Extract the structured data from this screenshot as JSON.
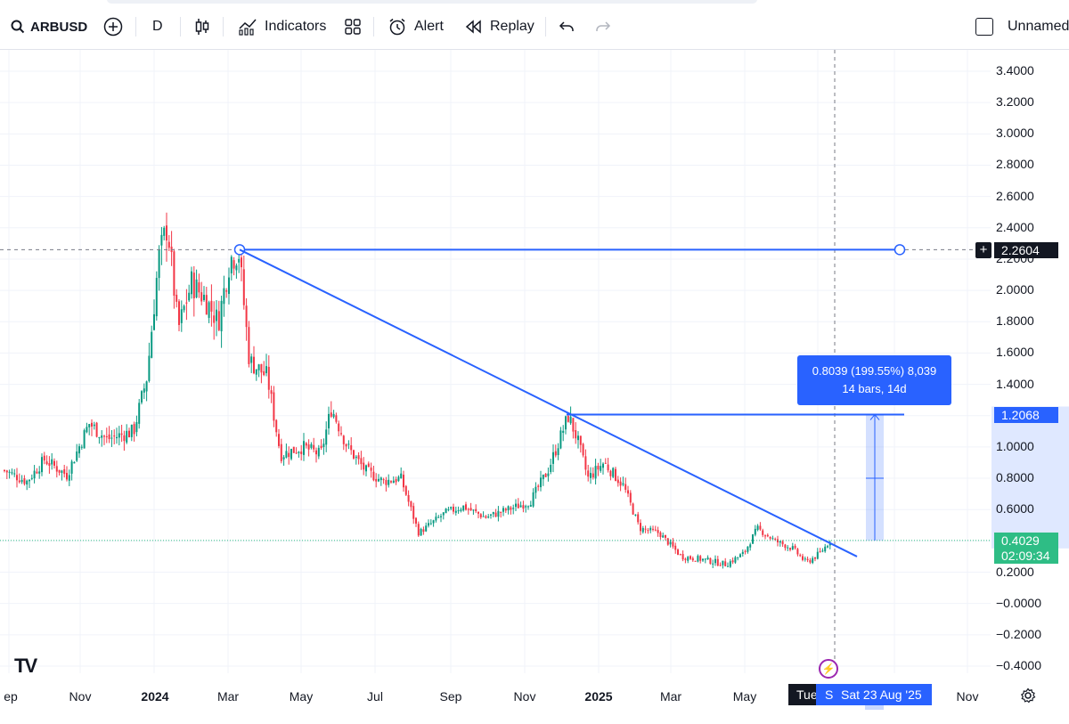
{
  "toolbar": {
    "symbol": "ARBUSD",
    "interval": "D",
    "indicators_label": "Indicators",
    "alert_label": "Alert",
    "replay_label": "Replay",
    "layout_name": "Unnamed"
  },
  "price_axis": {
    "ticks": [
      "3.4000",
      "3.2000",
      "3.0000",
      "2.8000",
      "2.6000",
      "2.4000",
      "2.2000",
      "2.0000",
      "1.8000",
      "1.6000",
      "1.4000",
      "1.2000",
      "1.0000",
      "0.8000",
      "0.6000",
      "0.4000",
      "0.2000",
      "−0.0000",
      "−0.2000",
      "−0.4000"
    ],
    "crosshair_price": "2.2604",
    "measure_target_price": "1.2068",
    "last_price": "0.4029",
    "countdown": "02:09:34"
  },
  "time_axis": {
    "ticks": [
      "ep",
      "Nov",
      "2024",
      "Mar",
      "May",
      "Jul",
      "Sep",
      "Nov",
      "2025",
      "Mar",
      "May",
      "Nov"
    ],
    "cursor_day": "Tue",
    "cursor_date_prefix": "S",
    "cursor_date": "Sat 23 Aug '25"
  },
  "measure": {
    "line1": "0.8039 (199.55%) 8,039",
    "line2": "14 bars, 14d"
  },
  "colors": {
    "up": "#089981",
    "down": "#f23645",
    "drawing": "#2962ff",
    "last_price_badge": "#2ebd85"
  },
  "chart_data": {
    "type": "candlestick",
    "symbol": "ARBUSD",
    "interval": "D",
    "ylim": [
      -0.4,
      3.4
    ],
    "series_close_approx": [
      {
        "x": "2023-10",
        "y": 0.85
      },
      {
        "x": "2023-12",
        "y": 1.15
      },
      {
        "x": "2024-01-12",
        "y": 2.4
      },
      {
        "x": "2024-02",
        "y": 1.85
      },
      {
        "x": "2024-03-10",
        "y": 2.25
      },
      {
        "x": "2024-04",
        "y": 1.1
      },
      {
        "x": "2024-06",
        "y": 1.2
      },
      {
        "x": "2024-08",
        "y": 0.5
      },
      {
        "x": "2024-10",
        "y": 0.6
      },
      {
        "x": "2024-12-05",
        "y": 1.2
      },
      {
        "x": "2025-02",
        "y": 0.5
      },
      {
        "x": "2025-04",
        "y": 0.3
      },
      {
        "x": "2025-05",
        "y": 0.45
      },
      {
        "x": "2025-08-23",
        "y": 0.4029
      }
    ],
    "drawings": [
      {
        "kind": "horizontal_line",
        "price": 2.2604
      },
      {
        "kind": "trend_line",
        "from_price": 2.2604,
        "to_price": 0.3
      },
      {
        "kind": "horizontal_line",
        "price": 1.2068
      },
      {
        "kind": "price_range",
        "value": "0.8039 (199.55%) 8,039",
        "bars": "14 bars, 14d"
      }
    ]
  }
}
